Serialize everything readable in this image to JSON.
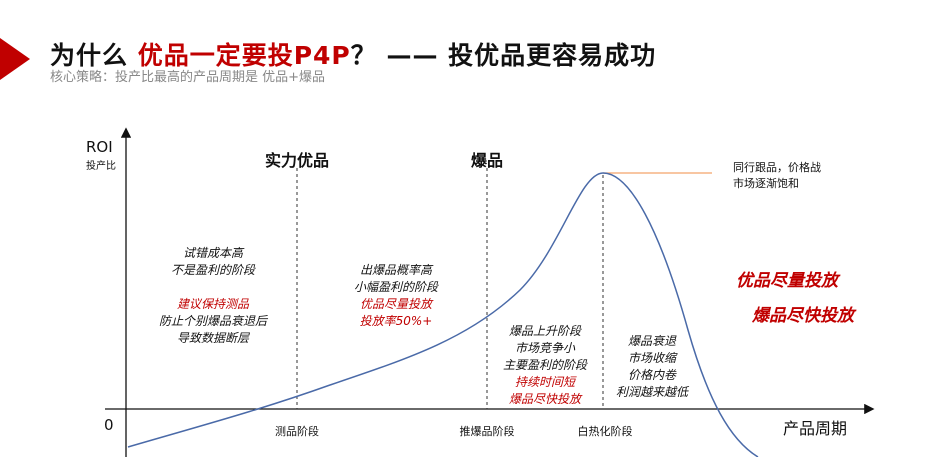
{
  "header": {
    "title_prefix": "为什么 ",
    "title_highlight": "优品一定要投P4P",
    "title_suffix": "？ —— 投优品更容易成功",
    "subtitle": "核心策略：投产比最高的产品周期是 优品+爆品"
  },
  "axes": {
    "y_label": "ROI",
    "y_sublabel": "投产比",
    "origin": "0",
    "x_label": "产品周期"
  },
  "phase_headers": [
    "实力优品",
    "爆品"
  ],
  "x_ticks": [
    "测品阶段",
    "推爆品阶段",
    "白热化阶段"
  ],
  "stages": [
    {
      "lines": [
        {
          "t": "试错成本高",
          "red": false
        },
        {
          "t": "不是盈利的阶段",
          "red": false
        },
        {
          "t": "",
          "red": false
        },
        {
          "t": "建议保持测品",
          "red": true
        },
        {
          "t": "防止个别爆品衰退后",
          "red": false
        },
        {
          "t": "导致数据断层",
          "red": false
        }
      ]
    },
    {
      "lines": [
        {
          "t": "出爆品概率高",
          "red": false
        },
        {
          "t": "小幅盈利的阶段",
          "red": false
        },
        {
          "t": "优品尽量投放",
          "red": true
        },
        {
          "t": "投放率50%+",
          "red": true
        }
      ]
    },
    {
      "lines": [
        {
          "t": "爆品上升阶段",
          "red": false
        },
        {
          "t": "市场竞争小",
          "red": false
        },
        {
          "t": "主要盈利的阶段",
          "red": false
        },
        {
          "t": "持续时间短",
          "red": true
        },
        {
          "t": "爆品尽快投放",
          "red": true
        }
      ]
    },
    {
      "lines": [
        {
          "t": "爆品衰退",
          "red": false
        },
        {
          "t": "市场收缩",
          "red": false
        },
        {
          "t": "价格内卷",
          "red": false
        },
        {
          "t": "利润越来越低",
          "red": false
        }
      ]
    }
  ],
  "peak_note": [
    "同行跟品，价格战",
    "市场逐渐饱和"
  ],
  "conclusions": [
    "优品尽量投放",
    "爆品尽快投放"
  ],
  "colors": {
    "accent": "#c00000",
    "curve": "#4a6aa8",
    "peak_line": "#f4a46a"
  }
}
